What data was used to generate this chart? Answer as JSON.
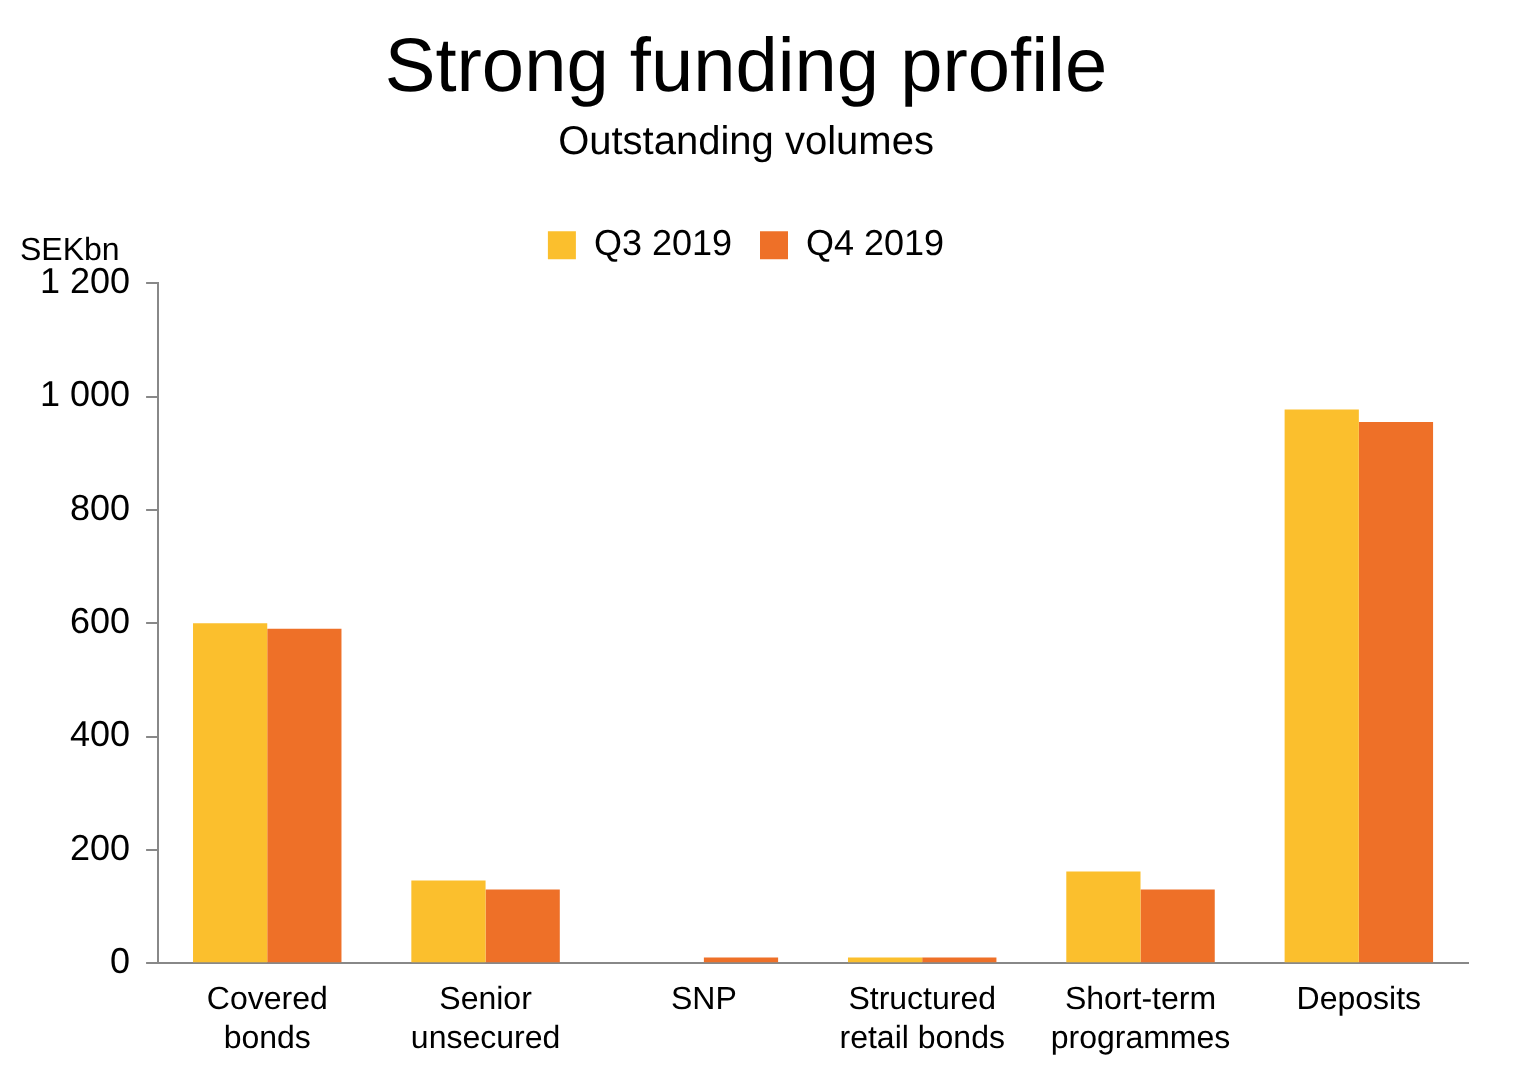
{
  "chart_data": {
    "type": "bar",
    "title": "Strong funding profile",
    "subtitle": "Outstanding volumes",
    "ylabel": "SEKbn",
    "categories": [
      "Covered bonds",
      "Senior unsecured",
      "SNP",
      "Structured retail bonds",
      "Short-term programmes",
      "Deposits"
    ],
    "series": [
      {
        "name": "Q3 2019",
        "color": "#fbbf2d",
        "values": [
          600,
          146,
          0,
          10,
          162,
          977
        ]
      },
      {
        "name": "Q4 2019",
        "color": "#ee7028",
        "values": [
          590,
          130,
          10,
          10,
          130,
          955
        ]
      }
    ],
    "ylim": [
      0,
      1200
    ],
    "yticks": [
      0,
      200,
      400,
      600,
      800,
      {
        "value": 1000,
        "label": "1 000"
      },
      {
        "value": 1200,
        "label": "1 200"
      }
    ],
    "grid": false,
    "legend": "top"
  }
}
